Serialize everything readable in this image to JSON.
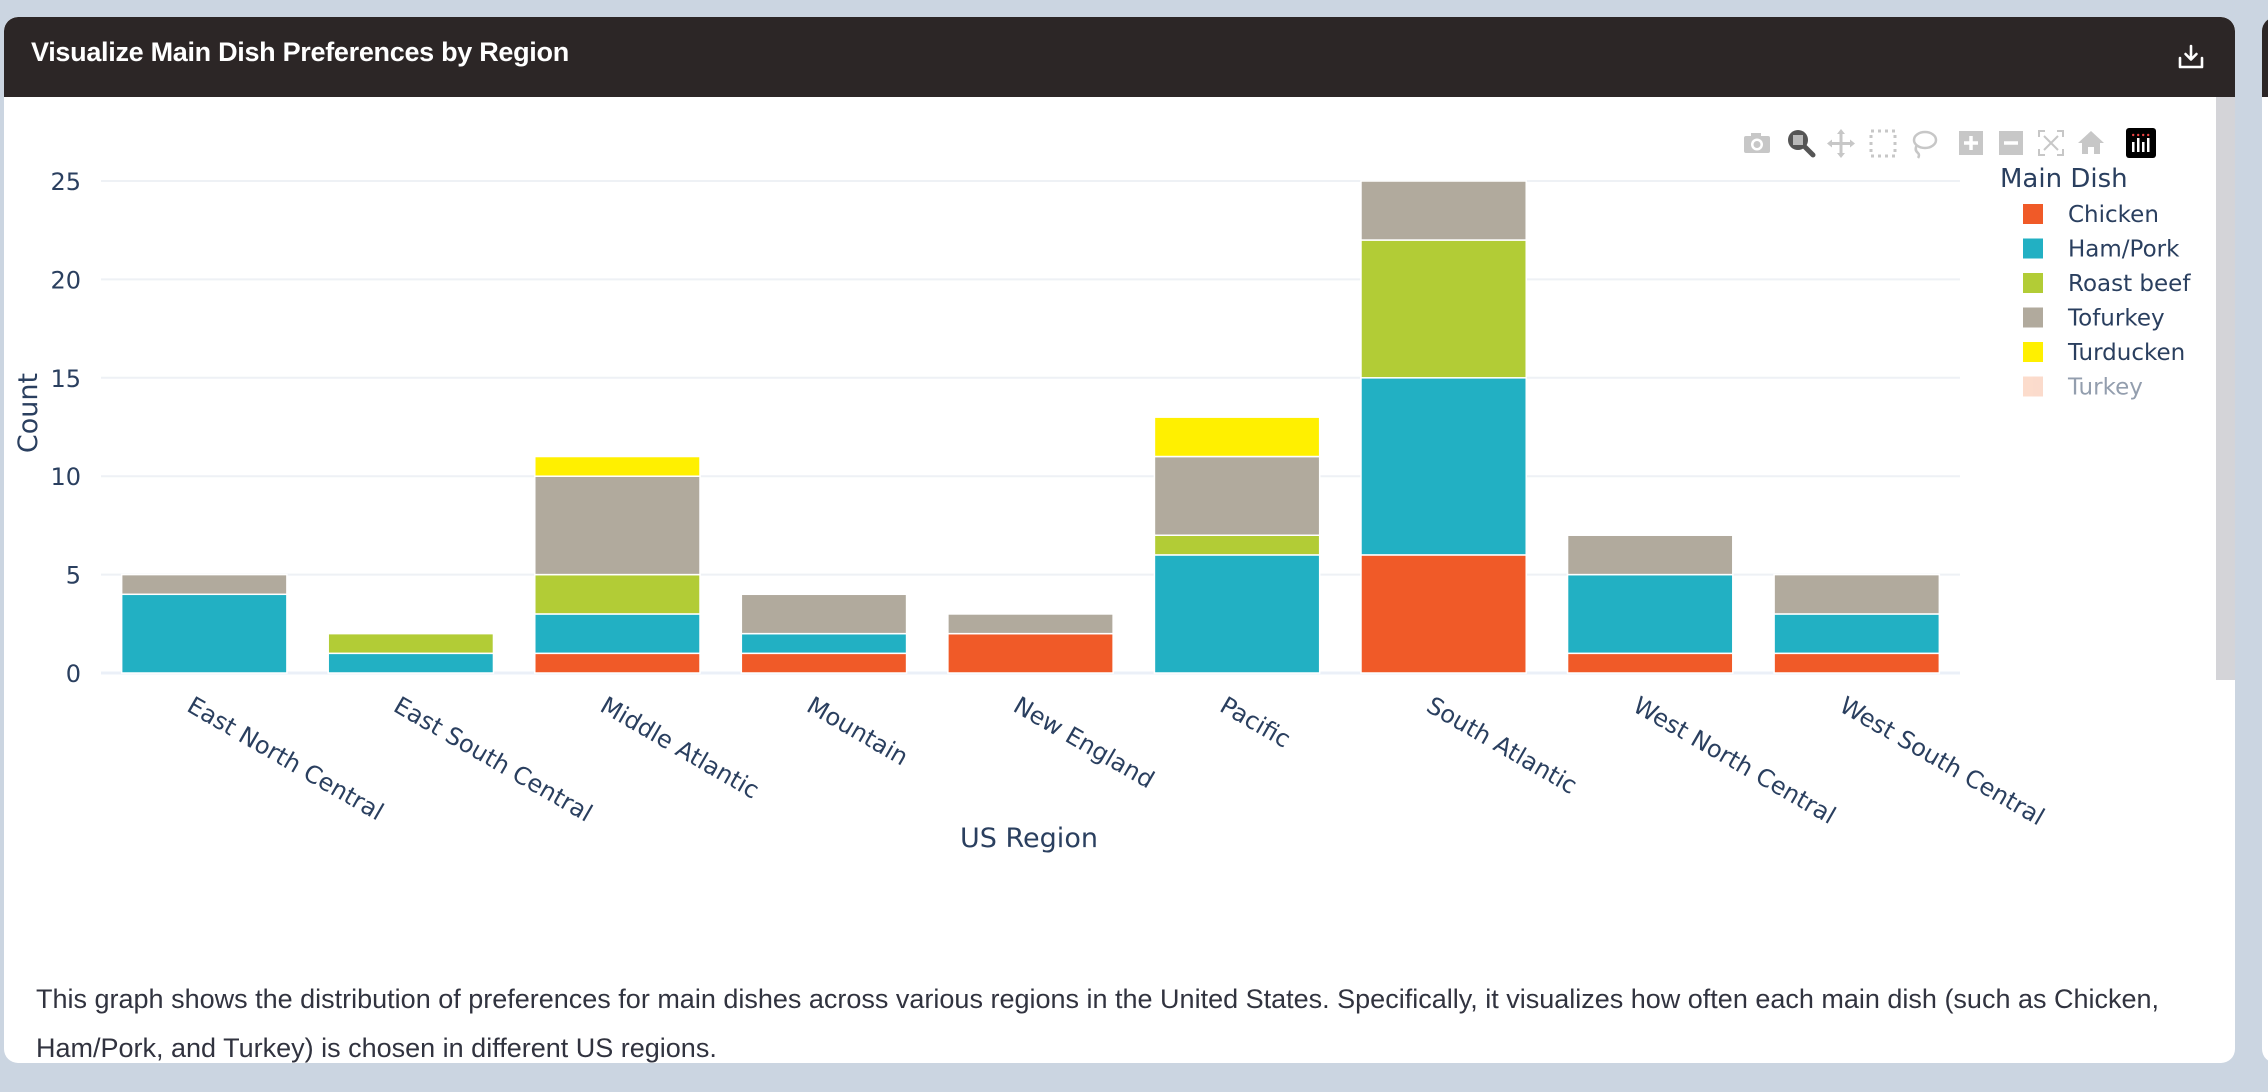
{
  "card": {
    "title": "Visualize Main Dish Preferences by Region",
    "download_icon": "download-icon"
  },
  "toolbar": {
    "icons": [
      "camera-icon",
      "zoom-icon",
      "pan-icon",
      "box-select-icon",
      "lasso-select-icon",
      "zoom-in-icon",
      "zoom-out-icon",
      "autoscale-icon",
      "reset-axes-icon",
      "plotly-logo-icon"
    ],
    "active": "zoom-icon"
  },
  "chart_data": {
    "type": "bar",
    "barmode": "stack",
    "title": "",
    "xlabel": "US Region",
    "ylabel": "Count",
    "ylim": [
      0,
      26
    ],
    "yticks": [
      0,
      5,
      10,
      15,
      20,
      25
    ],
    "grid": true,
    "legend_title": "Main Dish",
    "legend_position": "top-right",
    "categories": [
      "East North Central",
      "East South Central",
      "Middle Atlantic",
      "Mountain",
      "New England",
      "Pacific",
      "South Atlantic",
      "West North Central",
      "West South Central"
    ],
    "series": [
      {
        "name": "Chicken",
        "color": "#f05a28",
        "visible": true,
        "values": [
          0,
          0,
          1,
          1,
          2,
          0,
          6,
          1,
          1
        ]
      },
      {
        "name": "Ham/Pork",
        "color": "#22b0c3",
        "visible": true,
        "values": [
          4,
          1,
          2,
          1,
          0,
          6,
          9,
          4,
          2
        ]
      },
      {
        "name": "Roast beef",
        "color": "#b2cc36",
        "visible": true,
        "values": [
          0,
          1,
          2,
          0,
          0,
          1,
          7,
          0,
          0
        ]
      },
      {
        "name": "Tofurkey",
        "color": "#b1aa9d",
        "visible": true,
        "values": [
          1,
          0,
          5,
          2,
          1,
          4,
          3,
          2,
          2
        ]
      },
      {
        "name": "Turducken",
        "color": "#fff000",
        "visible": true,
        "values": [
          0,
          0,
          1,
          0,
          0,
          2,
          0,
          0,
          0
        ]
      },
      {
        "name": "Turkey",
        "color": "#f9b99a",
        "visible": false,
        "values": []
      }
    ]
  },
  "description": "This graph shows the distribution of preferences for main dishes across various regions in the United States. Specifically, it visualizes how often each main dish (such as Chicken, Ham/Pork, and Turkey) is chosen in different US regions."
}
